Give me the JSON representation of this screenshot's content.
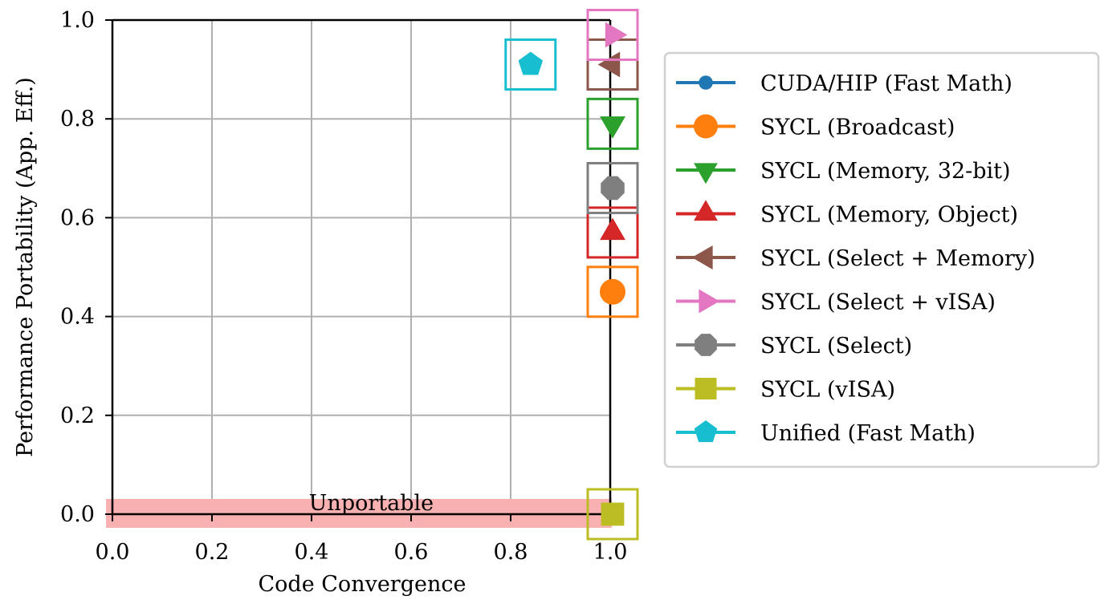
{
  "chart_data": {
    "type": "scatter",
    "xlabel": "Code Convergence",
    "ylabel": "Performance Portability (App. Eff.)",
    "xlim": [
      0.0,
      1.0
    ],
    "ylim": [
      0.0,
      1.0
    ],
    "xticks": [
      "0.0",
      "0.2",
      "0.4",
      "0.6",
      "0.8",
      "1.0"
    ],
    "yticks": [
      "0.0",
      "0.2",
      "0.4",
      "0.6",
      "0.8",
      "1.0"
    ],
    "grid": true,
    "legend_position": "right",
    "annotations": [
      {
        "text": "Unportable",
        "x": 0.52,
        "y": 0.0
      }
    ],
    "series": [
      {
        "name": "CUDA/HIP (Fast Math)",
        "color": "#1f77b4",
        "marker": "circle-small",
        "x": null,
        "y": null
      },
      {
        "name": "SYCL (Broadcast)",
        "color": "#ff7f0e",
        "marker": "circle",
        "x": 1.0,
        "y": 0.45
      },
      {
        "name": "SYCL (Memory, 32-bit)",
        "color": "#2ca02c",
        "marker": "triangle-down",
        "x": 1.0,
        "y": 0.79
      },
      {
        "name": "SYCL (Memory, Object)",
        "color": "#d62728",
        "marker": "triangle-up",
        "x": 1.0,
        "y": 0.57
      },
      {
        "name": "SYCL (Select + Memory)",
        "color": "#8c564b",
        "marker": "triangle-left",
        "x": 1.0,
        "y": 0.91
      },
      {
        "name": "SYCL (Select + vISA)",
        "color": "#e377c2",
        "marker": "triangle-right",
        "x": 1.0,
        "y": 0.97
      },
      {
        "name": "SYCL (Select)",
        "color": "#7f7f7f",
        "marker": "octagon",
        "x": 1.0,
        "y": 0.66
      },
      {
        "name": "SYCL (vISA)",
        "color": "#bcbd22",
        "marker": "square",
        "x": 1.0,
        "y": 0.0
      },
      {
        "name": "Unified (Fast Math)",
        "color": "#17becf",
        "marker": "pentagon",
        "x": 0.84,
        "y": 0.91
      }
    ]
  }
}
